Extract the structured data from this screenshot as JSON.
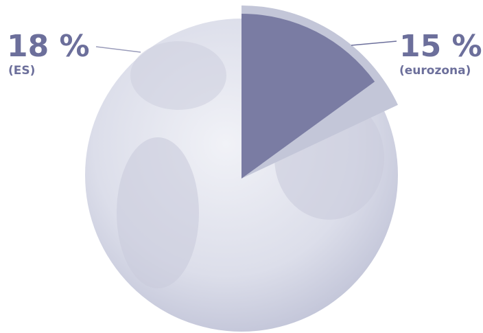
{
  "chart_data": {
    "type": "pie",
    "categories": [
      "(ES)",
      "(eurozona)"
    ],
    "values": [
      18,
      15
    ],
    "value_labels": [
      "18 %",
      "15 %"
    ],
    "colors": [
      "#c3c6d8",
      "#7a7ca3"
    ]
  }
}
